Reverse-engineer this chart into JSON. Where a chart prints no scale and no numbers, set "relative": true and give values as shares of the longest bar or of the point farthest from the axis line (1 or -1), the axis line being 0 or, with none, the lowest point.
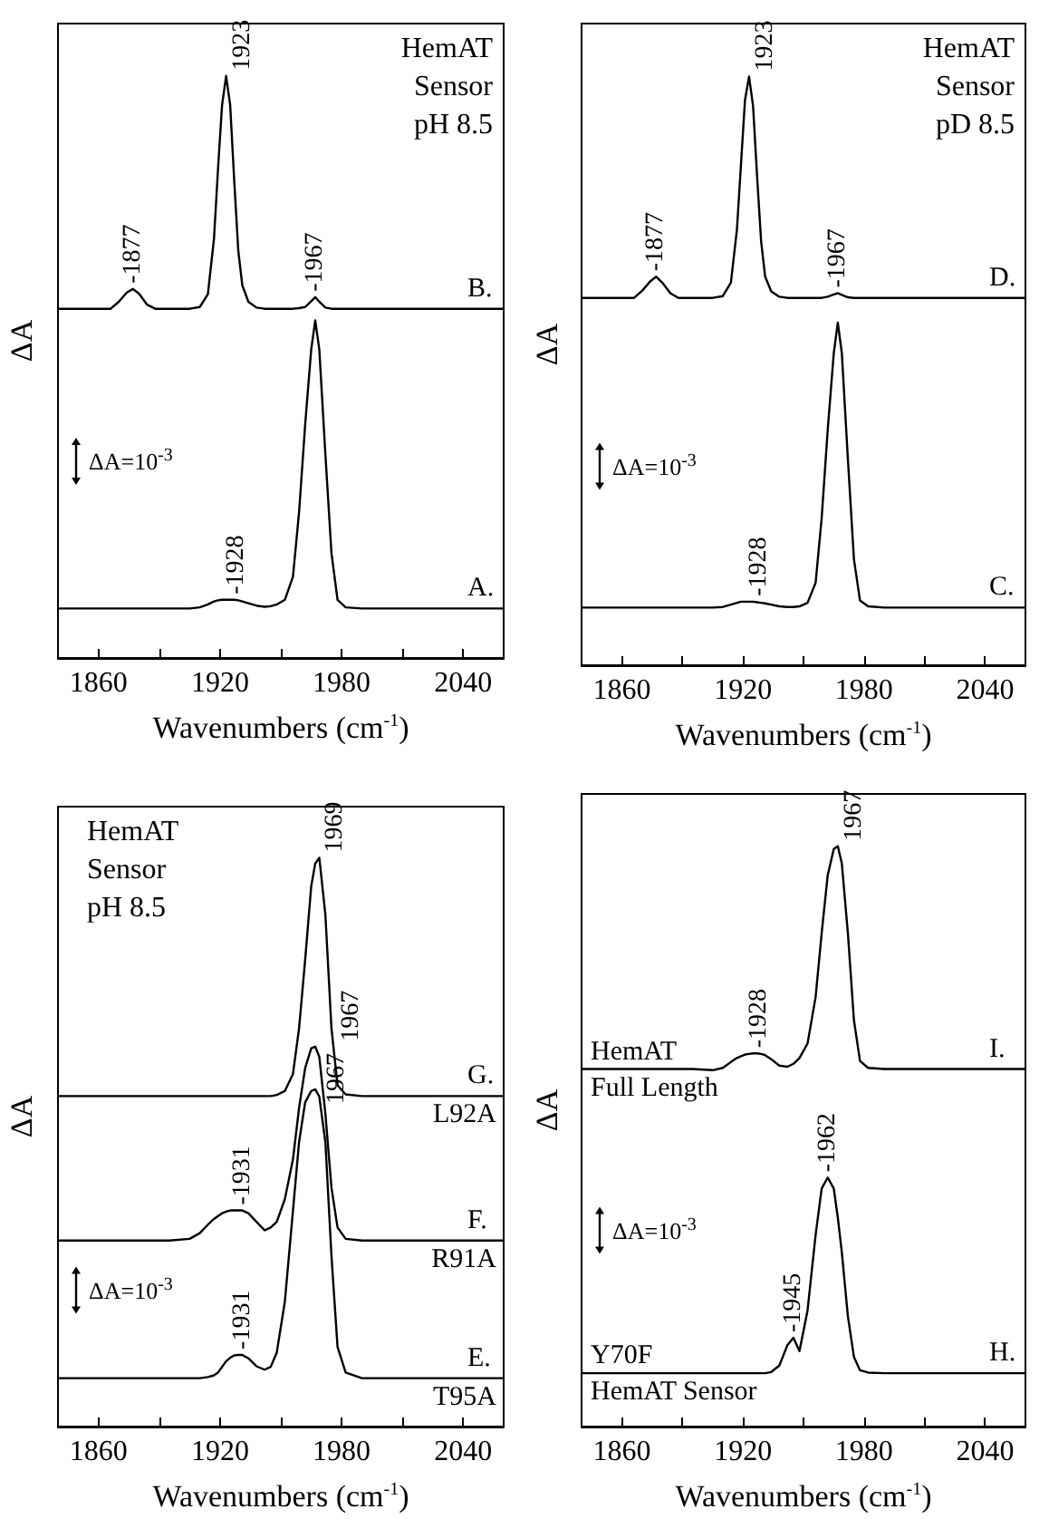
{
  "chart_data": [
    {
      "type": "line",
      "relative": true,
      "xlabel": "Wavenumbers (cm$^{-1}$)",
      "ylabel": "ΔA",
      "xlim": [
        1840,
        2060
      ],
      "xticks": [
        1860,
        {
          "value": 1890,
          "label": null
        },
        1920,
        {
          "value": 1950,
          "label": null
        },
        1980,
        {
          "value": 2010,
          "label": null
        },
        2040
      ],
      "x": [
        1840,
        1850,
        1860,
        1866,
        1870,
        1874,
        1877,
        1880,
        1884,
        1888,
        1895,
        1905,
        1910,
        1914,
        1917,
        1919,
        1921,
        1923,
        1925,
        1927,
        1929,
        1931,
        1934,
        1938,
        1942,
        1945,
        1948,
        1952,
        1956,
        1959,
        1962,
        1965,
        1967,
        1969,
        1972,
        1975,
        1978,
        1982,
        1990,
        2000,
        2010,
        2020,
        2030,
        2040,
        2050,
        2060
      ],
      "series": [
        {
          "name": "B.",
          "color": "#000000",
          "values": [
            0.6,
            0.6,
            0.6,
            0.6,
            0.612,
            0.628,
            0.634,
            0.626,
            0.607,
            0.6,
            0.6,
            0.6,
            0.603,
            0.625,
            0.72,
            0.84,
            0.95,
            1.0,
            0.95,
            0.82,
            0.7,
            0.64,
            0.612,
            0.602,
            0.6,
            0.6,
            0.6,
            0.6,
            0.6,
            0.601,
            0.603,
            0.613,
            0.62,
            0.612,
            0.602,
            0.6,
            0.6,
            0.6,
            0.6,
            0.6,
            0.6,
            0.6,
            0.6,
            0.6,
            0.6,
            0.6
          ]
        },
        {
          "name": "A.",
          "color": "#000000",
          "values": [
            0.085,
            0.085,
            0.085,
            0.085,
            0.085,
            0.085,
            0.085,
            0.085,
            0.085,
            0.085,
            0.085,
            0.085,
            0.087,
            0.092,
            0.097,
            0.099,
            0.1,
            0.1,
            0.1,
            0.1,
            0.099,
            0.097,
            0.094,
            0.09,
            0.088,
            0.089,
            0.092,
            0.1,
            0.14,
            0.25,
            0.4,
            0.53,
            0.58,
            0.53,
            0.35,
            0.18,
            0.1,
            0.087,
            0.085,
            0.085,
            0.085,
            0.085,
            0.085,
            0.085,
            0.085,
            0.085
          ]
        }
      ],
      "annotations": [
        "HemAT\nSensor\npH 8.5",
        "ΔA=10$^{-3}$",
        {
          "text": "-1877",
          "x": 1877,
          "y": 0.634
        },
        {
          "text": "1923",
          "x": 1923,
          "y": 1.0
        },
        {
          "text": "-1967",
          "x": 1967,
          "y": 0.62
        },
        {
          "text": "-1928",
          "x": 1928,
          "y": 0.1
        }
      ]
    },
    {
      "type": "line",
      "relative": true,
      "xlabel": "Wavenumbers (cm$^{-1}$)",
      "ylabel": "ΔA",
      "xlim": [
        1840,
        2060
      ],
      "xticks": [
        1860,
        {
          "value": 1890,
          "label": null
        },
        1920,
        {
          "value": 1950,
          "label": null
        },
        1980,
        {
          "value": 2010,
          "label": null
        },
        2040
      ],
      "x": [
        1840,
        1850,
        1860,
        1866,
        1870,
        1874,
        1877,
        1880,
        1884,
        1888,
        1895,
        1905,
        1910,
        1914,
        1917,
        1919,
        1921,
        1923,
        1925,
        1927,
        1929,
        1931,
        1934,
        1938,
        1942,
        1945,
        1948,
        1952,
        1956,
        1959,
        1962,
        1965,
        1967,
        1969,
        1972,
        1975,
        1978,
        1982,
        1990,
        2000,
        2010,
        2020,
        2030,
        2040,
        2050,
        2060
      ],
      "series": [
        {
          "name": "D.",
          "color": "#000000",
          "values": [
            0.624,
            0.624,
            0.624,
            0.624,
            0.636,
            0.652,
            0.66,
            0.65,
            0.632,
            0.624,
            0.624,
            0.624,
            0.627,
            0.65,
            0.74,
            0.85,
            0.96,
            1.0,
            0.95,
            0.83,
            0.72,
            0.66,
            0.635,
            0.626,
            0.624,
            0.624,
            0.624,
            0.624,
            0.624,
            0.624,
            0.626,
            0.63,
            0.632,
            0.629,
            0.625,
            0.624,
            0.624,
            0.624,
            0.624,
            0.624,
            0.624,
            0.624,
            0.624,
            0.624,
            0.624,
            0.624
          ]
        },
        {
          "name": "C.",
          "color": "#000000",
          "values": [
            0.098,
            0.098,
            0.098,
            0.098,
            0.098,
            0.098,
            0.098,
            0.098,
            0.098,
            0.098,
            0.098,
            0.098,
            0.099,
            0.103,
            0.106,
            0.108,
            0.108,
            0.108,
            0.108,
            0.107,
            0.106,
            0.105,
            0.103,
            0.1,
            0.099,
            0.099,
            0.1,
            0.106,
            0.14,
            0.25,
            0.4,
            0.53,
            0.582,
            0.53,
            0.35,
            0.18,
            0.11,
            0.1,
            0.098,
            0.098,
            0.098,
            0.098,
            0.098,
            0.098,
            0.098,
            0.098
          ]
        }
      ],
      "annotations": [
        "HemAT\nSensor\npD 8.5",
        "ΔA=10$^{-3}$",
        {
          "text": "-1877",
          "x": 1877,
          "y": 0.66
        },
        {
          "text": "1923",
          "x": 1923,
          "y": 1.0
        },
        {
          "text": "-1967",
          "x": 1967,
          "y": 0.632
        },
        {
          "text": "-1928",
          "x": 1928,
          "y": 0.108
        }
      ]
    },
    {
      "type": "line",
      "relative": true,
      "xlabel": "Wavenumbers (cm$^{-1}$)",
      "ylabel": "ΔA",
      "xlim": [
        1840,
        2060
      ],
      "xticks": [
        1860,
        {
          "value": 1890,
          "label": null
        },
        1920,
        {
          "value": 1950,
          "label": null
        },
        1980,
        {
          "value": 2010,
          "label": null
        },
        2040
      ],
      "x": [
        1840,
        1850,
        1860,
        1866,
        1870,
        1874,
        1877,
        1880,
        1884,
        1888,
        1895,
        1905,
        1910,
        1914,
        1917,
        1919,
        1921,
        1923,
        1925,
        1927,
        1929,
        1931,
        1934,
        1938,
        1942,
        1945,
        1948,
        1952,
        1956,
        1959,
        1962,
        1965,
        1967,
        1969,
        1972,
        1975,
        1978,
        1982,
        1990,
        2000,
        2010,
        2020,
        2030,
        2040,
        2050,
        2060
      ],
      "series": [
        {
          "name": "G.",
          "color": "#000000",
          "values": [
            0.581,
            0.581,
            0.581,
            0.581,
            0.581,
            0.581,
            0.581,
            0.581,
            0.581,
            0.581,
            0.581,
            0.581,
            0.581,
            0.581,
            0.581,
            0.581,
            0.581,
            0.581,
            0.581,
            0.581,
            0.581,
            0.581,
            0.581,
            0.581,
            0.581,
            0.581,
            0.583,
            0.59,
            0.62,
            0.7,
            0.82,
            0.95,
            0.99,
            1.0,
            0.9,
            0.7,
            0.6,
            0.584,
            0.581,
            0.581,
            0.581,
            0.581,
            0.581,
            0.581,
            0.581,
            0.581
          ]
        },
        {
          "name": "F.",
          "color": "#000000",
          "values": [
            0.327,
            0.327,
            0.327,
            0.327,
            0.327,
            0.327,
            0.327,
            0.327,
            0.327,
            0.327,
            0.327,
            0.33,
            0.34,
            0.355,
            0.365,
            0.37,
            0.375,
            0.378,
            0.38,
            0.38,
            0.38,
            0.38,
            0.375,
            0.36,
            0.345,
            0.35,
            0.36,
            0.4,
            0.47,
            0.56,
            0.63,
            0.665,
            0.668,
            0.65,
            0.55,
            0.42,
            0.35,
            0.33,
            0.327,
            0.327,
            0.327,
            0.327,
            0.327,
            0.327,
            0.327,
            0.327
          ]
        },
        {
          "name": "E.",
          "color": "#000000",
          "values": [
            0.085,
            0.085,
            0.085,
            0.085,
            0.085,
            0.085,
            0.085,
            0.085,
            0.085,
            0.085,
            0.085,
            0.085,
            0.085,
            0.087,
            0.09,
            0.095,
            0.105,
            0.115,
            0.121,
            0.125,
            0.126,
            0.126,
            0.12,
            0.106,
            0.1,
            0.105,
            0.13,
            0.22,
            0.38,
            0.5,
            0.57,
            0.59,
            0.593,
            0.58,
            0.5,
            0.3,
            0.14,
            0.095,
            0.085,
            0.085,
            0.085,
            0.085,
            0.085,
            0.085,
            0.085,
            0.085
          ]
        }
      ],
      "annotations": [
        "HemAT\nSensor\npH 8.5",
        "ΔA=10$^{-3}$",
        {
          "text": "1969",
          "x": 1969,
          "y": 1.0
        },
        {
          "text": "1967",
          "x": 1967,
          "y": 0.668
        },
        {
          "text": "-1931",
          "x": 1931,
          "y": 0.38
        },
        {
          "text": "1967",
          "x": 1967,
          "y": 0.593
        },
        {
          "text": "-1931",
          "x": 1931,
          "y": 0.126
        },
        {
          "text": "L92A",
          "x": 2060,
          "y": 0.581
        },
        {
          "text": "R91A",
          "x": 2060,
          "y": 0.327
        },
        {
          "text": "T95A",
          "x": 2060,
          "y": 0.085
        }
      ]
    },
    {
      "type": "line",
      "relative": true,
      "xlabel": "Wavenumbers (cm$^{-1}$)",
      "ylabel": "ΔA",
      "xlim": [
        1840,
        2060
      ],
      "xticks": [
        1860,
        {
          "value": 1890,
          "label": null
        },
        1920,
        {
          "value": 1950,
          "label": null
        },
        1980,
        {
          "value": 2010,
          "label": null
        },
        2040
      ],
      "x": [
        1840,
        1850,
        1860,
        1866,
        1870,
        1874,
        1877,
        1880,
        1884,
        1888,
        1895,
        1905,
        1910,
        1914,
        1917,
        1919,
        1921,
        1923,
        1925,
        1927,
        1929,
        1931,
        1934,
        1938,
        1942,
        1945,
        1948,
        1952,
        1956,
        1959,
        1962,
        1965,
        1967,
        1969,
        1972,
        1975,
        1978,
        1982,
        1990,
        2000,
        2010,
        2020,
        2030,
        2040,
        2050,
        2060
      ],
      "series": [
        {
          "name": "I.",
          "color": "#000000",
          "values": [
            0.616,
            0.616,
            0.616,
            0.616,
            0.616,
            0.616,
            0.616,
            0.616,
            0.616,
            0.616,
            0.616,
            0.614,
            0.618,
            0.628,
            0.635,
            0.638,
            0.641,
            0.642,
            0.643,
            0.643,
            0.642,
            0.64,
            0.633,
            0.622,
            0.62,
            0.625,
            0.635,
            0.66,
            0.74,
            0.85,
            0.95,
            0.995,
            1.0,
            0.97,
            0.85,
            0.7,
            0.63,
            0.618,
            0.616,
            0.616,
            0.616,
            0.616,
            0.616,
            0.616,
            0.616,
            0.616
          ]
        },
        {
          "name": "H.",
          "color": "#000000",
          "values": [
            0.092,
            0.092,
            0.092,
            0.092,
            0.092,
            0.092,
            0.092,
            0.092,
            0.092,
            0.092,
            0.092,
            0.092,
            0.092,
            0.092,
            0.092,
            0.092,
            0.092,
            0.092,
            0.092,
            0.092,
            0.092,
            0.092,
            0.094,
            0.105,
            0.14,
            0.153,
            0.13,
            0.2,
            0.33,
            0.41,
            0.429,
            0.41,
            0.36,
            0.3,
            0.19,
            0.12,
            0.097,
            0.093,
            0.092,
            0.092,
            0.092,
            0.092,
            0.092,
            0.092,
            0.092,
            0.092
          ]
        }
      ],
      "annotations": [
        "ΔA=10$^{-3}$",
        {
          "text": "1967",
          "x": 1967,
          "y": 1.0
        },
        {
          "text": "-1928",
          "x": 1928,
          "y": 0.643
        },
        {
          "text": "-1962",
          "x": 1962,
          "y": 0.429
        },
        {
          "text": "-1945",
          "x": 1945,
          "y": 0.153
        },
        {
          "text": "HemAT",
          "x": 1840,
          "y": 0.616
        },
        {
          "text": "Full Length",
          "x": 1840,
          "y": 0.616
        },
        {
          "text": "Y70F",
          "x": 1840,
          "y": 0.092
        },
        {
          "text": "HemAT Sensor",
          "x": 1840,
          "y": 0.092
        }
      ]
    }
  ]
}
